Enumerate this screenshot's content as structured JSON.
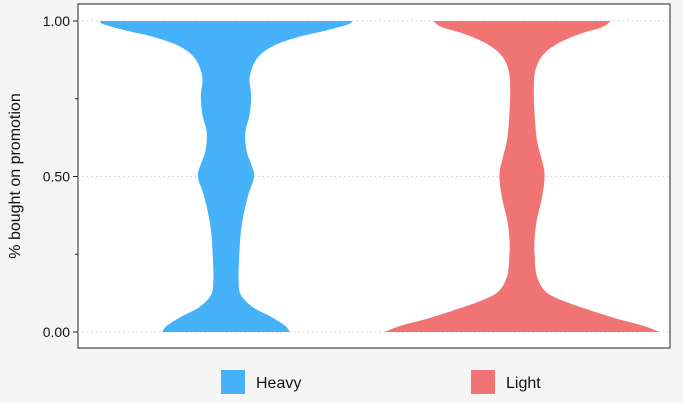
{
  "chart_data": {
    "type": "violin",
    "xlabel": "",
    "ylabel": "% bought on promotion",
    "ylim": [
      0,
      1.05
    ],
    "yticks": [
      {
        "value": 0.0,
        "label": "0.00"
      },
      {
        "value": 0.5,
        "label": "0.50"
      },
      {
        "value": 1.0,
        "label": "1.00"
      }
    ],
    "y_minor_ticks": [
      0.25,
      0.75
    ],
    "grid": "horizontal-dotted",
    "legend_position": "bottom",
    "series": [
      {
        "name": "Heavy",
        "color": "#45b1f9",
        "profile": [
          {
            "y": 0.0,
            "w": 0.43
          },
          {
            "y": 0.02,
            "w": 0.4
          },
          {
            "y": 0.05,
            "w": 0.3
          },
          {
            "y": 0.08,
            "w": 0.18
          },
          {
            "y": 0.12,
            "w": 0.1
          },
          {
            "y": 0.17,
            "w": 0.085
          },
          {
            "y": 0.25,
            "w": 0.09
          },
          {
            "y": 0.32,
            "w": 0.1
          },
          {
            "y": 0.38,
            "w": 0.12
          },
          {
            "y": 0.44,
            "w": 0.15
          },
          {
            "y": 0.5,
            "w": 0.19
          },
          {
            "y": 0.54,
            "w": 0.17
          },
          {
            "y": 0.58,
            "w": 0.14
          },
          {
            "y": 0.64,
            "w": 0.13
          },
          {
            "y": 0.7,
            "w": 0.16
          },
          {
            "y": 0.76,
            "w": 0.17
          },
          {
            "y": 0.82,
            "w": 0.16
          },
          {
            "y": 0.88,
            "w": 0.21
          },
          {
            "y": 0.92,
            "w": 0.32
          },
          {
            "y": 0.95,
            "w": 0.5
          },
          {
            "y": 0.97,
            "w": 0.68
          },
          {
            "y": 0.99,
            "w": 0.83
          },
          {
            "y": 1.0,
            "w": 0.85
          }
        ]
      },
      {
        "name": "Light",
        "color": "#f07474",
        "profile": [
          {
            "y": 0.0,
            "w": 0.93
          },
          {
            "y": 0.02,
            "w": 0.82
          },
          {
            "y": 0.04,
            "w": 0.66
          },
          {
            "y": 0.07,
            "w": 0.46
          },
          {
            "y": 0.1,
            "w": 0.28
          },
          {
            "y": 0.13,
            "w": 0.16
          },
          {
            "y": 0.18,
            "w": 0.1
          },
          {
            "y": 0.25,
            "w": 0.085
          },
          {
            "y": 0.3,
            "w": 0.085
          },
          {
            "y": 0.36,
            "w": 0.1
          },
          {
            "y": 0.42,
            "w": 0.13
          },
          {
            "y": 0.48,
            "w": 0.15
          },
          {
            "y": 0.52,
            "w": 0.15
          },
          {
            "y": 0.56,
            "w": 0.13
          },
          {
            "y": 0.62,
            "w": 0.1
          },
          {
            "y": 0.7,
            "w": 0.085
          },
          {
            "y": 0.78,
            "w": 0.08
          },
          {
            "y": 0.84,
            "w": 0.09
          },
          {
            "y": 0.89,
            "w": 0.14
          },
          {
            "y": 0.93,
            "w": 0.25
          },
          {
            "y": 0.96,
            "w": 0.4
          },
          {
            "y": 0.98,
            "w": 0.54
          },
          {
            "y": 1.0,
            "w": 0.6
          }
        ]
      }
    ]
  }
}
